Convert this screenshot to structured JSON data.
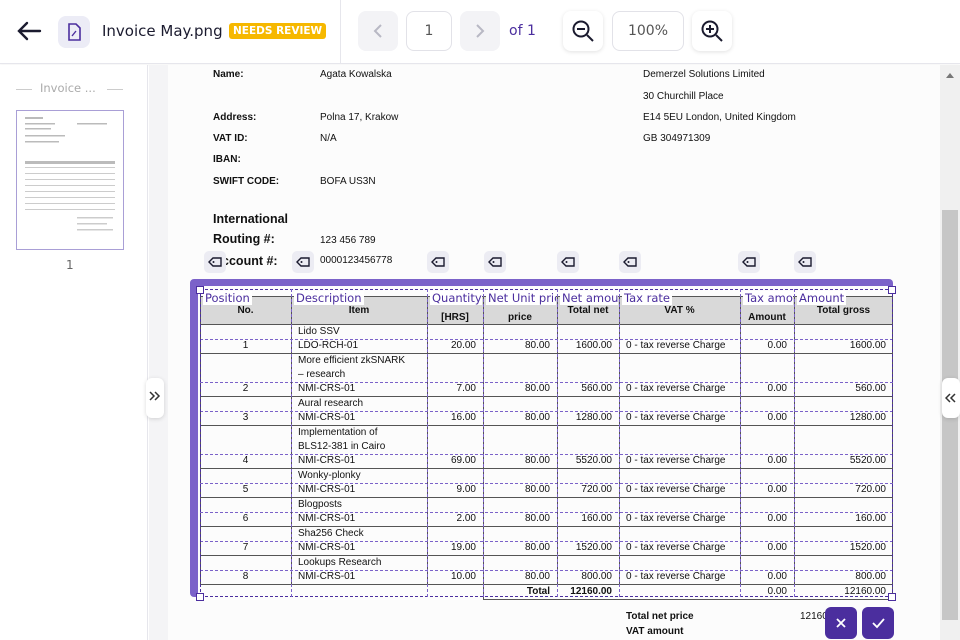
{
  "toolbar": {
    "file_name": "Invoice May.png",
    "status": "NEEDS REVIEW",
    "page": "1",
    "page_total": "of 1",
    "zoom": "100%"
  },
  "sidebar": {
    "document_label": "Invoice ...",
    "page_number": "1"
  },
  "document": {
    "buyer_fields": [
      {
        "label": "Name:",
        "value": "Agata Kowalska"
      },
      {
        "label": "Address:",
        "value": "Polna 17, Krakow"
      },
      {
        "label": "VAT ID:",
        "value": "N/A"
      },
      {
        "label": "IBAN:"
      },
      {
        "label": "SWIFT CODE:",
        "value": "BOFA US3N"
      }
    ],
    "seller_lines": [
      "Demerzel Solutions Limited",
      "30 Churchill Place",
      "E14 5EU London, United Kingdom",
      "GB 304971309"
    ],
    "routing": {
      "label": [
        "International",
        "Routing #:"
      ],
      "value": "123 456 789"
    },
    "account": {
      "label": "Account #:",
      "value": "0000123456778"
    },
    "table": {
      "column_labels": [
        "Position",
        "Description",
        "Quantity",
        "Net Unit price",
        "Net amount",
        "Tax rate",
        "Tax amount",
        "Amount"
      ],
      "headers": [
        "No.",
        "Item",
        "[HRS]",
        "price",
        "Total net",
        "VAT %",
        "Amount",
        "Total gross"
      ],
      "rows": [
        {
          "no": "1",
          "item": [
            "Lido SSV",
            "LDO-RCH-01"
          ],
          "qty": "20.00",
          "price": "80.00",
          "net": "1600.00",
          "vat": "0 - tax reverse Charge",
          "vat_amount": "0.00",
          "gross": "1600.00"
        },
        {
          "no": "2",
          "item": [
            "More efficient zkSNARK",
            "– research",
            "NMI-CRS-01"
          ],
          "qty": "7.00",
          "price": "80.00",
          "net": "560.00",
          "vat": "0 - tax reverse Charge",
          "vat_amount": "0.00",
          "gross": "560.00"
        },
        {
          "no": "3",
          "item": [
            "Aural research",
            "NMI-CRS-01"
          ],
          "qty": "16.00",
          "price": "80.00",
          "net": "1280.00",
          "vat": "0 - tax reverse Charge",
          "vat_amount": "0.00",
          "gross": "1280.00"
        },
        {
          "no": "4",
          "item": [
            "Implementation of",
            "BLS12-381 in Cairo",
            "NMI-CRS-01"
          ],
          "qty": "69.00",
          "price": "80.00",
          "net": "5520.00",
          "vat": "0 - tax reverse Charge",
          "vat_amount": "0.00",
          "gross": "5520.00"
        },
        {
          "no": "5",
          "item": [
            "Wonky-plonky",
            "NMI-CRS-01"
          ],
          "qty": "9.00",
          "price": "80.00",
          "net": "720.00",
          "vat": "0 - tax reverse Charge",
          "vat_amount": "0.00",
          "gross": "720.00"
        },
        {
          "no": "6",
          "item": [
            "Blogposts",
            "NMI-CRS-01"
          ],
          "qty": "2.00",
          "price": "80.00",
          "net": "160.00",
          "vat": "0 - tax reverse Charge",
          "vat_amount": "0.00",
          "gross": "160.00"
        },
        {
          "no": "7",
          "item": [
            "Sha256 Check",
            "NMI-CRS-01"
          ],
          "qty": "19.00",
          "price": "80.00",
          "net": "1520.00",
          "vat": "0 - tax reverse Charge",
          "vat_amount": "0.00",
          "gross": "1520.00"
        },
        {
          "no": "8",
          "item": [
            "Lookups Research",
            "NMI-CRS-01"
          ],
          "qty": "10.00",
          "price": "80.00",
          "net": "800.00",
          "vat": "0 - tax reverse Charge",
          "vat_amount": "0.00",
          "gross": "800.00"
        }
      ],
      "total": {
        "label": "Total",
        "net": "12160.00",
        "vat_amount": "0.00",
        "gross": "12160.00"
      }
    },
    "summary": [
      {
        "label": "Total net price",
        "value": "12160"
      },
      {
        "label": "VAT amount"
      }
    ]
  }
}
